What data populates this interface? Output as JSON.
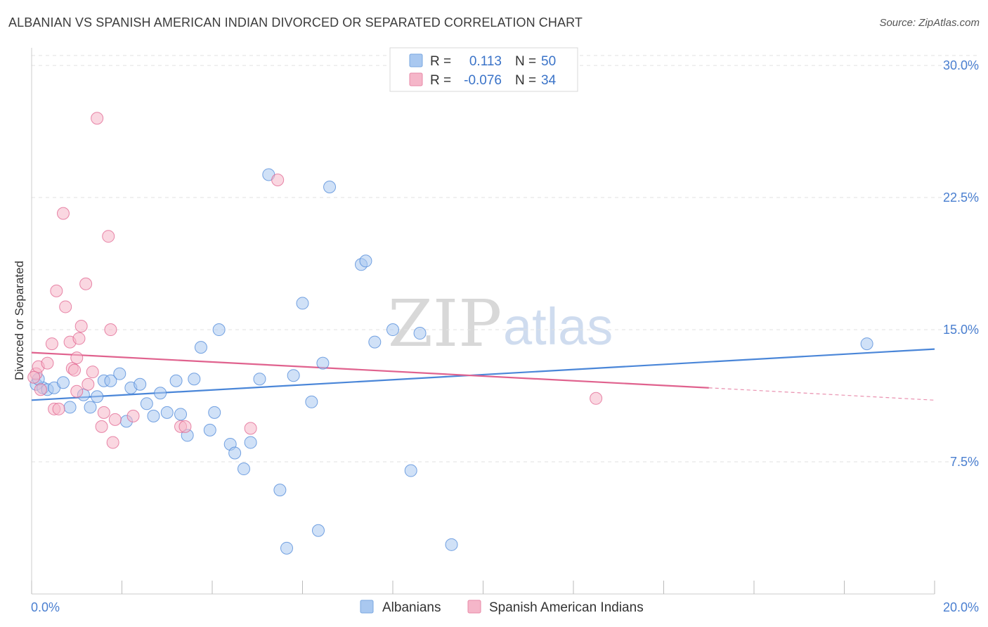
{
  "title": "ALBANIAN VS SPANISH AMERICAN INDIAN DIVORCED OR SEPARATED CORRELATION CHART",
  "source": "Source: ZipAtlas.com",
  "watermark": {
    "zip": "ZIP",
    "atlas": "atlas"
  },
  "legend": {
    "rows": [
      {
        "r_label": "R =",
        "r_value": "0.113",
        "n_label": "N =",
        "n_value": "50",
        "color": "#a9c8f0"
      },
      {
        "r_label": "R =",
        "r_value": "-0.076",
        "n_label": "N =",
        "n_value": "34",
        "color": "#f5b6c9"
      }
    ]
  },
  "bottom_legend": [
    {
      "label": "Albanians",
      "color": "#a9c8f0"
    },
    {
      "label": "Spanish American Indians",
      "color": "#f5b6c9"
    }
  ],
  "chart_data": {
    "type": "scatter",
    "title": "ALBANIAN VS SPANISH AMERICAN INDIAN DIVORCED OR SEPARATED CORRELATION CHART",
    "xlabel": "",
    "ylabel": "Divorced or Separated",
    "xlim": [
      0,
      20
    ],
    "ylim": [
      0,
      31
    ],
    "x_tick_labels": [
      "0.0%",
      "20.0%"
    ],
    "y_ticks": [
      7.5,
      15.0,
      22.5,
      30.0
    ],
    "y_tick_labels": [
      "7.5%",
      "15.0%",
      "22.5%",
      "30.0%"
    ],
    "grid": "horizontal dashed",
    "legend_position": "top-center",
    "series": [
      {
        "name": "Albanians",
        "color": "#4a86d8",
        "fill": "#a9c8f0",
        "trend": {
          "x": [
            0,
            20
          ],
          "y": [
            11.0,
            13.9
          ]
        },
        "points": [
          [
            0.1,
            11.9
          ],
          [
            0.25,
            11.7
          ],
          [
            0.35,
            11.6
          ],
          [
            0.5,
            11.7
          ],
          [
            0.7,
            12.0
          ],
          [
            0.85,
            10.6
          ],
          [
            1.15,
            11.3
          ],
          [
            1.45,
            11.2
          ],
          [
            1.3,
            10.6
          ],
          [
            1.6,
            12.1
          ],
          [
            1.75,
            12.1
          ],
          [
            1.95,
            12.5
          ],
          [
            2.1,
            9.8
          ],
          [
            2.2,
            11.7
          ],
          [
            2.4,
            11.9
          ],
          [
            2.55,
            10.8
          ],
          [
            2.7,
            10.1
          ],
          [
            2.85,
            11.4
          ],
          [
            3.0,
            10.3
          ],
          [
            3.2,
            12.1
          ],
          [
            3.3,
            10.2
          ],
          [
            3.45,
            9.0
          ],
          [
            3.6,
            12.2
          ],
          [
            3.75,
            14.0
          ],
          [
            3.95,
            9.3
          ],
          [
            4.05,
            10.3
          ],
          [
            4.15,
            15.0
          ],
          [
            4.4,
            8.5
          ],
          [
            4.5,
            8.0
          ],
          [
            4.7,
            7.1
          ],
          [
            4.85,
            8.6
          ],
          [
            5.05,
            12.2
          ],
          [
            5.25,
            23.8
          ],
          [
            5.5,
            5.9
          ],
          [
            5.65,
            2.6
          ],
          [
            5.8,
            12.4
          ],
          [
            6.0,
            16.5
          ],
          [
            6.2,
            10.9
          ],
          [
            6.35,
            3.6
          ],
          [
            6.45,
            13.1
          ],
          [
            6.6,
            23.1
          ],
          [
            7.3,
            18.7
          ],
          [
            7.4,
            18.9
          ],
          [
            7.6,
            14.3
          ],
          [
            8.0,
            15.0
          ],
          [
            8.4,
            7.0
          ],
          [
            8.6,
            14.8
          ],
          [
            9.3,
            2.8
          ],
          [
            18.5,
            14.2
          ],
          [
            0.15,
            12.2
          ]
        ]
      },
      {
        "name": "Spanish American Indians",
        "color": "#e0628e",
        "fill": "#f5b6c9",
        "trend": {
          "x": [
            0,
            15
          ],
          "y": [
            13.7,
            11.7
          ]
        },
        "trend_dashed": {
          "x": [
            15,
            20
          ],
          "y": [
            11.7,
            11.0
          ]
        },
        "points": [
          [
            0.1,
            12.5
          ],
          [
            0.15,
            12.9
          ],
          [
            0.2,
            11.6
          ],
          [
            0.35,
            13.1
          ],
          [
            0.45,
            14.2
          ],
          [
            0.5,
            10.5
          ],
          [
            0.55,
            17.2
          ],
          [
            0.6,
            10.5
          ],
          [
            0.7,
            21.6
          ],
          [
            0.75,
            16.3
          ],
          [
            0.85,
            14.3
          ],
          [
            0.9,
            12.8
          ],
          [
            0.95,
            12.7
          ],
          [
            1.0,
            13.4
          ],
          [
            1.05,
            14.5
          ],
          [
            1.1,
            15.2
          ],
          [
            1.2,
            17.6
          ],
          [
            1.25,
            11.9
          ],
          [
            1.35,
            12.6
          ],
          [
            1.45,
            27.0
          ],
          [
            1.55,
            9.5
          ],
          [
            1.6,
            10.3
          ],
          [
            1.7,
            20.3
          ],
          [
            1.75,
            15.0
          ],
          [
            1.8,
            8.6
          ],
          [
            1.85,
            9.9
          ],
          [
            2.25,
            10.1
          ],
          [
            3.3,
            9.5
          ],
          [
            3.4,
            9.5
          ],
          [
            4.85,
            9.4
          ],
          [
            5.45,
            23.5
          ],
          [
            12.5,
            11.1
          ],
          [
            0.05,
            12.3
          ],
          [
            1.0,
            11.5
          ]
        ]
      }
    ]
  }
}
